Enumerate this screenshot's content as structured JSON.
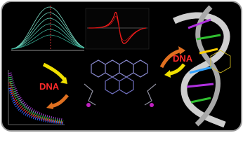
{
  "annotations": [
    "DNA",
    "DNA"
  ]
}
